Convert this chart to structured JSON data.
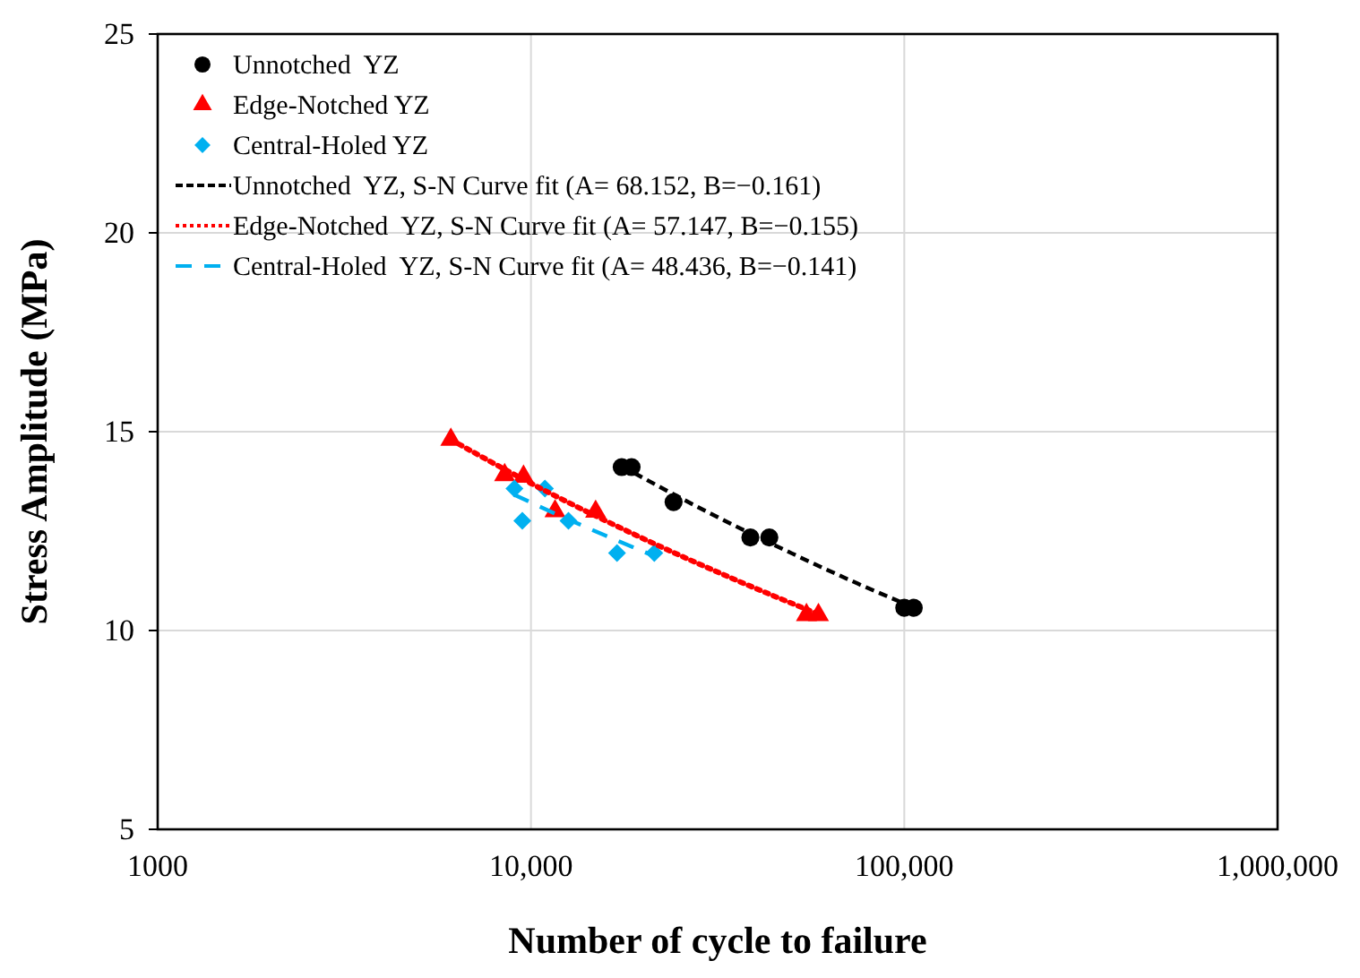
{
  "chart_data": {
    "type": "scatter",
    "xlabel": "Number of cycle to failure",
    "ylabel": "Stress Amplitude (MPa)",
    "log": "x",
    "xlim": [
      1000,
      1000000
    ],
    "ylim": [
      5,
      25
    ],
    "xticks": [
      1000,
      {
        "value": 10000,
        "label": "10,000"
      },
      {
        "value": 100000,
        "label": "100,000"
      },
      {
        "value": 1000000,
        "label": "1,000,000"
      }
    ],
    "yticks": [
      5,
      10,
      15,
      20,
      25
    ],
    "grid": true,
    "legend": "top left",
    "series": [
      {
        "name": "Unnotched  YZ",
        "marker": "circle",
        "color": "#000000",
        "x": [
          17500,
          18600,
          24100,
          38700,
          43500,
          100000,
          106000
        ],
        "values": [
          14.11,
          14.11,
          13.23,
          12.34,
          12.34,
          10.57,
          10.57
        ]
      },
      {
        "name": "Edge-Notched YZ",
        "marker": "triangle",
        "color": "#ff0000",
        "x": [
          6100,
          8500,
          9550,
          11600,
          14900,
          54700,
          58900
        ],
        "values": [
          14.8,
          13.91,
          13.87,
          13.0,
          12.99,
          10.39,
          10.39
        ]
      },
      {
        "name": "Central-Holed YZ",
        "marker": "diamond",
        "color": "#00b0f0",
        "x": [
          9030,
          10900,
          9480,
          12600,
          17000,
          21400
        ],
        "values": [
          13.57,
          13.57,
          12.76,
          12.76,
          11.95,
          11.95
        ]
      },
      {
        "name": "Unnotched  YZ, S-N Curve fit (A= 68.152, B=−0.161)",
        "type": "line",
        "line_style": "dashed",
        "color": "#000000",
        "x": [
          17500,
          30000,
          50000,
          75000,
          106000
        ],
        "values": [
          14.13,
          12.96,
          11.94,
          11.18,
          10.58
        ]
      },
      {
        "name": "Edge-Notched  YZ, S-N Curve fit (A= 57.147, B=−0.155)",
        "type": "line",
        "line_style": "dotted",
        "color": "#ff0000",
        "x": [
          6100,
          10000,
          20000,
          35000,
          58900
        ],
        "values": [
          14.8,
          13.7,
          12.31,
          11.29,
          10.41
        ]
      },
      {
        "name": "Central-Holed  YZ, S-N Curve fit (A= 48.436, B=−0.141)",
        "type": "line",
        "line_style": "longdash",
        "color": "#00b0f0",
        "x": [
          9000,
          12000,
          16000,
          21400
        ],
        "values": [
          13.42,
          12.88,
          12.37,
          11.87
        ]
      }
    ]
  }
}
